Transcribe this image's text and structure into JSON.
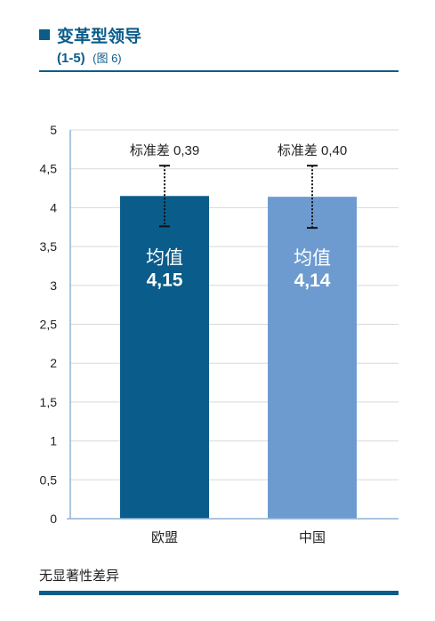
{
  "header": {
    "title": "变革型领导",
    "scale": "(1-5)",
    "figure_ref": "(图 6)"
  },
  "colors": {
    "title": "#0a5c8a",
    "bar_eu": "#0a5c8a",
    "bar_cn": "#6d9bd0",
    "grid": "#d9d9d9"
  },
  "chart_data": {
    "type": "bar",
    "categories": [
      "欧盟",
      "中国"
    ],
    "values": [
      4.15,
      4.14
    ],
    "std_dev": [
      0.39,
      0.4
    ],
    "ylim": [
      0,
      5
    ],
    "yticks": [
      "0",
      "0,5",
      "1",
      "1,5",
      "2",
      "2,5",
      "3",
      "3,5",
      "4",
      "4,5",
      "5"
    ],
    "bar_mean_label": "均值",
    "value_labels": [
      "4,15",
      "4,14"
    ],
    "std_labels": [
      "标准差 0,39",
      "标准差 0,40"
    ],
    "grid": true
  },
  "footer": {
    "note": "无显著性差异"
  }
}
